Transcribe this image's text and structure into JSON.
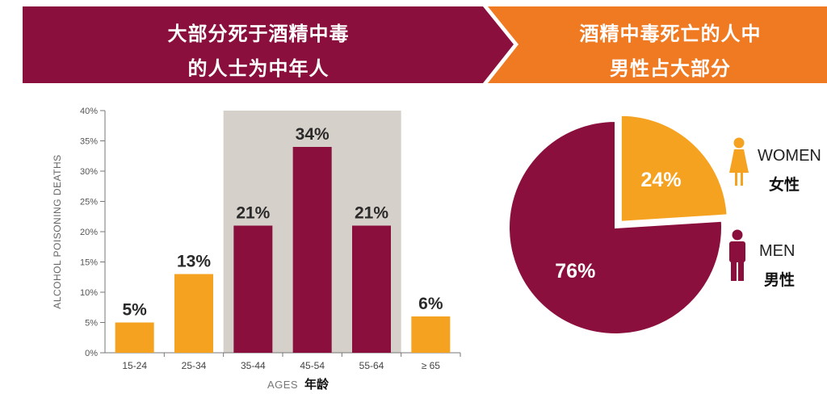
{
  "banners": {
    "left_line1": "大部分死于酒精中毒",
    "left_line2": "的人士为中年人",
    "right_line1": "酒精中毒死亡的人中",
    "right_line2": "男性占大部分"
  },
  "colors": {
    "maroon": "#8a0f3c",
    "orange": "#f4a21f",
    "banner_orange": "#ef7a22",
    "highlight_band": "#d6d0ca"
  },
  "chart_data": [
    {
      "type": "bar",
      "categories": [
        "15-24",
        "25-34",
        "35-44",
        "45-54",
        "55-64",
        "≥ 65"
      ],
      "values": [
        5,
        13,
        21,
        34,
        21,
        6
      ],
      "data_labels": [
        "5%",
        "13%",
        "21%",
        "34%",
        "21%",
        "6%"
      ],
      "bar_colors": [
        "#f4a21f",
        "#f4a21f",
        "#8a0f3c",
        "#8a0f3c",
        "#8a0f3c",
        "#f4a21f"
      ],
      "highlighted_categories": [
        "35-44",
        "45-54",
        "55-64"
      ],
      "ylim": [
        0,
        40
      ],
      "yticks": [
        0,
        5,
        10,
        15,
        20,
        25,
        30,
        35,
        40
      ],
      "ytick_labels": [
        "0%",
        "5%",
        "10%",
        "15%",
        "20%",
        "25%",
        "30%",
        "35%",
        "40%"
      ],
      "ylabel": "ALCOHOL POISONING DEATHS",
      "xlabel": "AGES",
      "xlabel_cn": "年龄",
      "grid": false
    },
    {
      "type": "pie",
      "slices": [
        {
          "label": "WOMEN",
          "label_cn": "女性",
          "value": 24,
          "value_label": "24%",
          "color": "#f4a21f",
          "icon": "female-figure-icon"
        },
        {
          "label": "MEN",
          "label_cn": "男性",
          "value": 76,
          "value_label": "76%",
          "color": "#8a0f3c",
          "icon": "male-figure-icon"
        }
      ],
      "legend_position": "right"
    }
  ]
}
